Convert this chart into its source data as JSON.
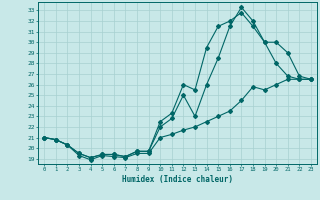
{
  "xlabel": "Humidex (Indice chaleur)",
  "background_color": "#c8e8e8",
  "grid_color": "#a8d0d0",
  "line_color": "#006666",
  "xlim": [
    -0.5,
    23.5
  ],
  "ylim": [
    18.5,
    33.8
  ],
  "xticks": [
    0,
    1,
    2,
    3,
    4,
    5,
    6,
    7,
    8,
    9,
    10,
    11,
    12,
    13,
    14,
    15,
    16,
    17,
    18,
    19,
    20,
    21,
    22,
    23
  ],
  "yticks": [
    19,
    20,
    21,
    22,
    23,
    24,
    25,
    26,
    27,
    28,
    29,
    30,
    31,
    32,
    33
  ],
  "line1_x": [
    0,
    1,
    2,
    3,
    4,
    5,
    6,
    7,
    8,
    9,
    10,
    11,
    12,
    13,
    14,
    15,
    16,
    17,
    18,
    19,
    20,
    21,
    22,
    23
  ],
  "line1_y": [
    21.0,
    20.8,
    20.3,
    19.3,
    18.9,
    19.3,
    19.2,
    19.1,
    19.5,
    19.5,
    21.0,
    21.3,
    21.7,
    22.0,
    22.5,
    23.0,
    23.5,
    24.5,
    25.8,
    25.5,
    26.0,
    26.5,
    26.5,
    26.5
  ],
  "line2_x": [
    0,
    1,
    2,
    3,
    4,
    5,
    6,
    7,
    8,
    9,
    10,
    11,
    12,
    13,
    14,
    15,
    16,
    17,
    18,
    19,
    20,
    21,
    22,
    23
  ],
  "line2_y": [
    21.0,
    20.8,
    20.3,
    19.5,
    19.1,
    19.4,
    19.4,
    19.2,
    19.7,
    19.7,
    22.0,
    22.8,
    25.0,
    23.0,
    26.0,
    28.5,
    31.5,
    33.3,
    32.0,
    30.0,
    28.0,
    26.8,
    26.5,
    26.5
  ],
  "line3_x": [
    0,
    1,
    2,
    3,
    4,
    5,
    6,
    7,
    8,
    9,
    10,
    11,
    12,
    13,
    14,
    15,
    16,
    17,
    18,
    19,
    20,
    21,
    22,
    23
  ],
  "line3_y": [
    21.0,
    20.8,
    20.3,
    19.5,
    19.1,
    19.4,
    19.4,
    19.2,
    19.7,
    19.7,
    22.5,
    23.3,
    26.0,
    25.5,
    29.5,
    31.5,
    32.0,
    32.8,
    31.5,
    30.0,
    30.0,
    29.0,
    26.8,
    26.5
  ]
}
